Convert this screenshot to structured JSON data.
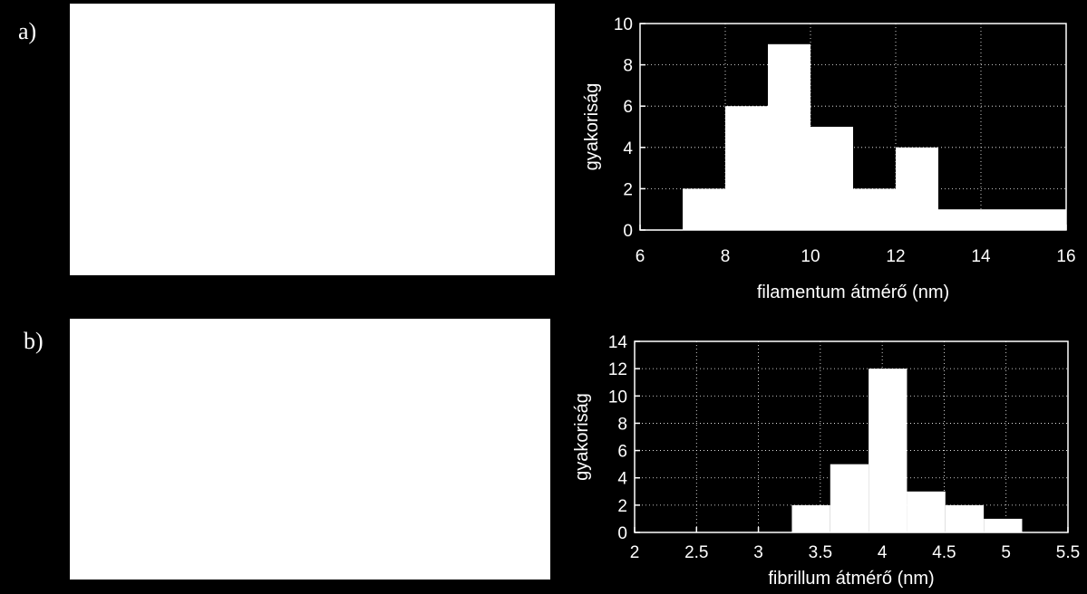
{
  "panels": [
    {
      "label": "a)"
    },
    {
      "label": "b)"
    }
  ],
  "colors": {
    "background": "#000000",
    "bars": "#ffffff",
    "grid": "#ffffff",
    "axes": "#ffffff"
  },
  "chart_data": [
    {
      "type": "bar",
      "title": "",
      "xlabel": "filamentum átmérő (nm)",
      "ylabel": "gyakoriság",
      "xlim": [
        6,
        16
      ],
      "ylim": [
        0,
        10
      ],
      "xticks": [
        "6",
        "8",
        "10",
        "12",
        "14",
        "16"
      ],
      "yticks": [
        "0",
        "2",
        "4",
        "6",
        "8",
        "10"
      ],
      "grid": true,
      "bins": [
        {
          "x0": 6,
          "x1": 7,
          "value": 0
        },
        {
          "x0": 7,
          "x1": 8,
          "value": 2
        },
        {
          "x0": 8,
          "x1": 9,
          "value": 6
        },
        {
          "x0": 9,
          "x1": 10,
          "value": 9
        },
        {
          "x0": 10,
          "x1": 11,
          "value": 5
        },
        {
          "x0": 11,
          "x1": 12,
          "value": 2
        },
        {
          "x0": 12,
          "x1": 13,
          "value": 4
        },
        {
          "x0": 13,
          "x1": 14,
          "value": 1
        },
        {
          "x0": 14,
          "x1": 15,
          "value": 1
        },
        {
          "x0": 15,
          "x1": 16,
          "value": 1
        }
      ]
    },
    {
      "type": "bar",
      "title": "",
      "xlabel": "fibrillum átmérő (nm)",
      "ylabel": "gyakoriság",
      "xlim": [
        2,
        5.5
      ],
      "ylim": [
        0,
        14
      ],
      "xticks": [
        "2",
        "2.5",
        "3",
        "3.5",
        "4",
        "4.5",
        "5",
        "5.5"
      ],
      "yticks": [
        "0",
        "2",
        "4",
        "6",
        "8",
        "10",
        "12",
        "14"
      ],
      "grid": true,
      "bins": [
        {
          "x0": 3.27,
          "x1": 3.58,
          "value": 2
        },
        {
          "x0": 3.58,
          "x1": 3.89,
          "value": 5
        },
        {
          "x0": 3.89,
          "x1": 4.2,
          "value": 12
        },
        {
          "x0": 4.2,
          "x1": 4.51,
          "value": 3
        },
        {
          "x0": 4.51,
          "x1": 4.82,
          "value": 2
        },
        {
          "x0": 4.82,
          "x1": 5.13,
          "value": 1
        }
      ]
    }
  ]
}
